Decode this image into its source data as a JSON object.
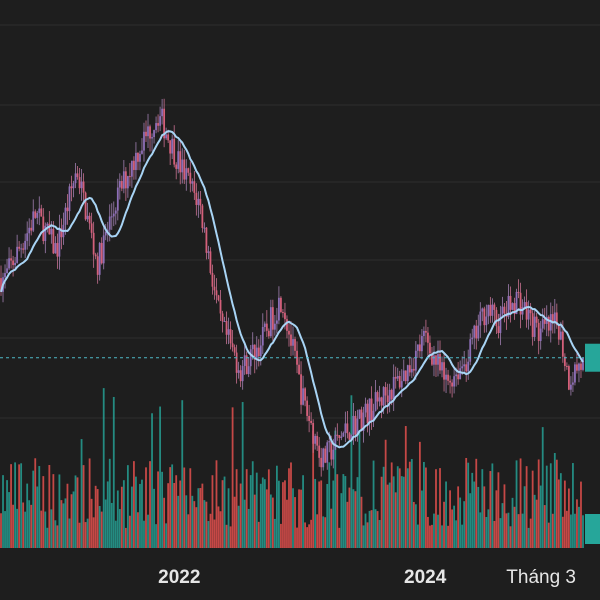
{
  "chart_data": {
    "type": "candlestick",
    "x_labels": [
      {
        "text": "2022",
        "date": "2022-01",
        "bold": true
      },
      {
        "text": "2024",
        "date": "2024-01",
        "bold": true
      },
      {
        "text": "Tháng 3",
        "date": "2025-03",
        "bold": false
      }
    ],
    "x_range": [
      "2020-08",
      "2025-04"
    ],
    "price_key_points": [
      {
        "date": "2020-08",
        "value": 68
      },
      {
        "date": "2020-11",
        "value": 82
      },
      {
        "date": "2021-01",
        "value": 74
      },
      {
        "date": "2021-03",
        "value": 92
      },
      {
        "date": "2021-05",
        "value": 71
      },
      {
        "date": "2021-07",
        "value": 86
      },
      {
        "date": "2021-09",
        "value": 96
      },
      {
        "date": "2021-11",
        "value": 104
      },
      {
        "date": "2022-01",
        "value": 93
      },
      {
        "date": "2022-03",
        "value": 84
      },
      {
        "date": "2022-05",
        "value": 58
      },
      {
        "date": "2022-07",
        "value": 48
      },
      {
        "date": "2022-09",
        "value": 54
      },
      {
        "date": "2022-11",
        "value": 64
      },
      {
        "date": "2023-01",
        "value": 42
      },
      {
        "date": "2023-03",
        "value": 28
      },
      {
        "date": "2023-05",
        "value": 34
      },
      {
        "date": "2023-08",
        "value": 40
      },
      {
        "date": "2023-11",
        "value": 47
      },
      {
        "date": "2024-01",
        "value": 55
      },
      {
        "date": "2024-03",
        "value": 45
      },
      {
        "date": "2024-05",
        "value": 50
      },
      {
        "date": "2024-07",
        "value": 62
      },
      {
        "date": "2024-08",
        "value": 58
      },
      {
        "date": "2024-10",
        "value": 64
      },
      {
        "date": "2024-12",
        "value": 56
      },
      {
        "date": "2025-02",
        "value": 58
      },
      {
        "date": "2025-03",
        "value": 46
      },
      {
        "date": "2025-04",
        "value": 49
      }
    ],
    "moving_average": {
      "color": "#a8d4f5"
    },
    "current_price_line": {
      "style": "dashed",
      "color": "#4fb8c6"
    },
    "volume": {
      "shown": true
    },
    "grid": "horizontal",
    "colors": {
      "up": "#26a69a",
      "down": "#ef5350",
      "background": "#1e1e1e",
      "price_marker": "#26a69a"
    }
  }
}
